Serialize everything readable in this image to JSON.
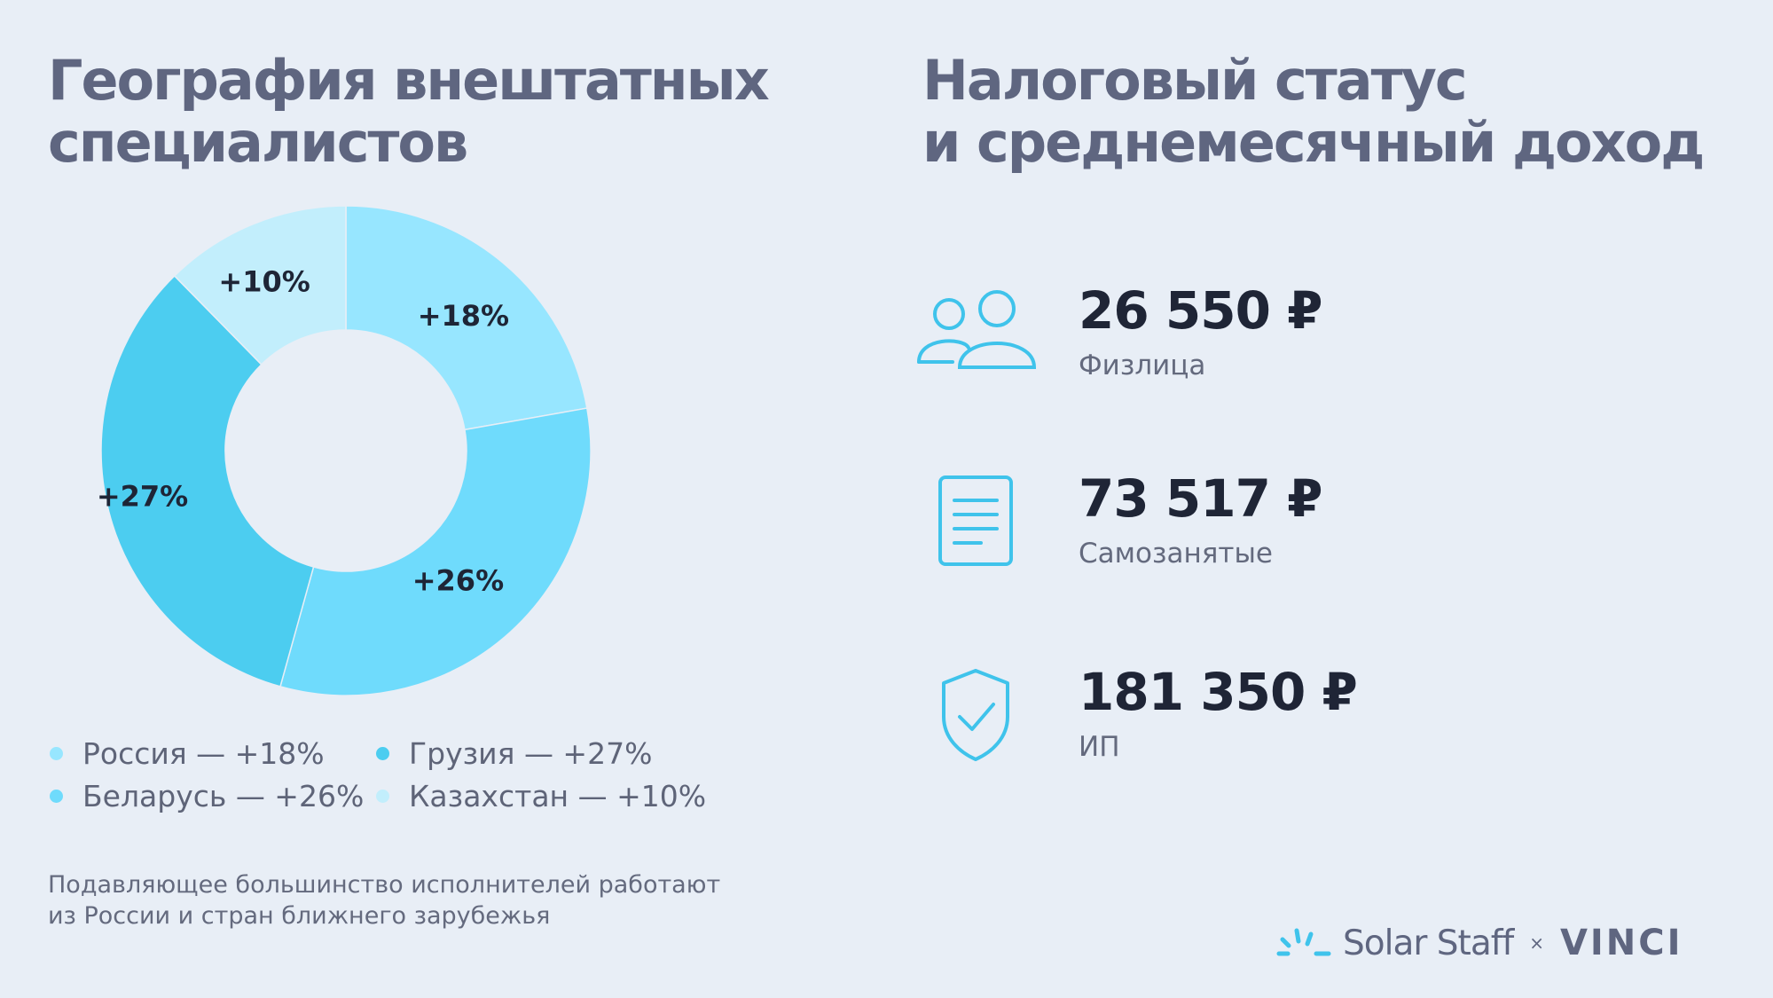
{
  "left_title": {
    "line1": "География внештатных",
    "line2": "специалистов"
  },
  "right_title": {
    "line1": "Налоговый статус",
    "line2": "и среднемесячный доход"
  },
  "chart_data": {
    "type": "pie",
    "donut": true,
    "slices": [
      {
        "label": "Россия",
        "value": 18,
        "display": "+18%",
        "color": "#97e6ff"
      },
      {
        "label": "Беларусь",
        "value": 26,
        "display": "+26%",
        "color": "#6fdbfc"
      },
      {
        "label": "Грузия",
        "value": 27,
        "display": "+27%",
        "color": "#4ccdf0"
      },
      {
        "label": "Казахстан",
        "value": 10,
        "display": "+10%",
        "color": "#c2eefc"
      }
    ]
  },
  "legend": [
    {
      "text": "Россия — +18%",
      "color": "#97e6ff"
    },
    {
      "text": "Грузия — +27%",
      "color": "#4ccdf0"
    },
    {
      "text": "Беларусь — +26%",
      "color": "#6fdbfc"
    },
    {
      "text": "Казахстан — +10%",
      "color": "#c2eefc"
    }
  ],
  "note": {
    "line1": "Подавляющее большинство исполнителей работают",
    "line2": "из России и стран ближнего зарубежья"
  },
  "stats": [
    {
      "icon": "people-icon",
      "value": "26 550 ₽",
      "label": "Физлица"
    },
    {
      "icon": "document-icon",
      "value": "73 517 ₽",
      "label": "Самозанятые"
    },
    {
      "icon": "shield-check-icon",
      "value": "181 350 ₽",
      "label": "ИП"
    }
  ],
  "brand": {
    "name": "Solar Staff",
    "separator": "×",
    "partner": "VINCI"
  },
  "colors": {
    "accent": "#4ccdf0",
    "title": "#5f6680",
    "value": "#1f2536",
    "background": "#e8eef6"
  }
}
